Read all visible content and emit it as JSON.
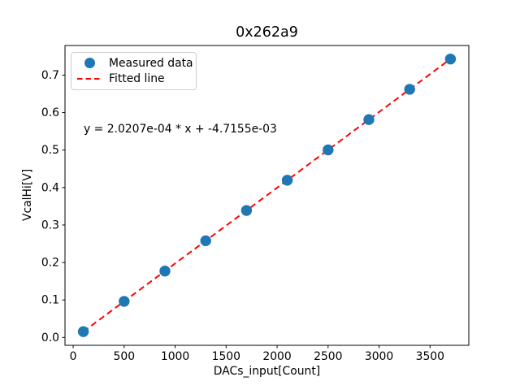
{
  "figure": {
    "title": "0x262a9",
    "xlabel": "DACs_input[Count]",
    "ylabel": "VcalHi[V]",
    "annotation": "y = 2.0207e-04 * x + -4.7155e-03",
    "background_color": "#ffffff"
  },
  "legend": {
    "position": "upper left",
    "items": [
      {
        "label": "Measured data",
        "type": "scatter",
        "color": "#1f77b4"
      },
      {
        "label": "Fitted line",
        "type": "dashed-line",
        "color": "#ff0000"
      }
    ]
  },
  "chart_data": {
    "type": "scatter",
    "title": "0x262a9",
    "xlabel": "DACs_input[Count]",
    "ylabel": "VcalHi[V]",
    "xlim": [
      -80,
      3880
    ],
    "ylim": [
      -0.021,
      0.779
    ],
    "x_ticks": [
      0,
      500,
      1000,
      1500,
      2000,
      2500,
      3000,
      3500
    ],
    "x_tick_labels": [
      "0",
      "500",
      "1000",
      "1500",
      "2000",
      "2500",
      "3000",
      "3500"
    ],
    "y_ticks": [
      0.0,
      0.1,
      0.2,
      0.3,
      0.4,
      0.5,
      0.6,
      0.7
    ],
    "y_tick_labels": [
      "0.0",
      "0.1",
      "0.2",
      "0.3",
      "0.4",
      "0.5",
      "0.6",
      "0.7"
    ],
    "grid": false,
    "legend_position": "upper left",
    "series": [
      {
        "name": "Measured data",
        "type": "scatter",
        "color": "#1f77b4",
        "marker": "circle",
        "x": [
          100,
          500,
          900,
          1300,
          1700,
          2100,
          2500,
          2900,
          3300,
          3700
        ],
        "y": [
          0.0155,
          0.0963,
          0.1771,
          0.258,
          0.3388,
          0.4196,
          0.5005,
          0.5813,
          0.6621,
          0.7429
        ]
      },
      {
        "name": "Fitted line",
        "type": "line",
        "style": "dashed",
        "color": "#ff0000",
        "slope": 0.00020207,
        "intercept": -0.0047155,
        "x_range": [
          100,
          3700
        ]
      }
    ],
    "annotation": {
      "text": "y = 2.0207e-04 * x + -4.7155e-03",
      "x": 100,
      "y": 0.57
    }
  }
}
